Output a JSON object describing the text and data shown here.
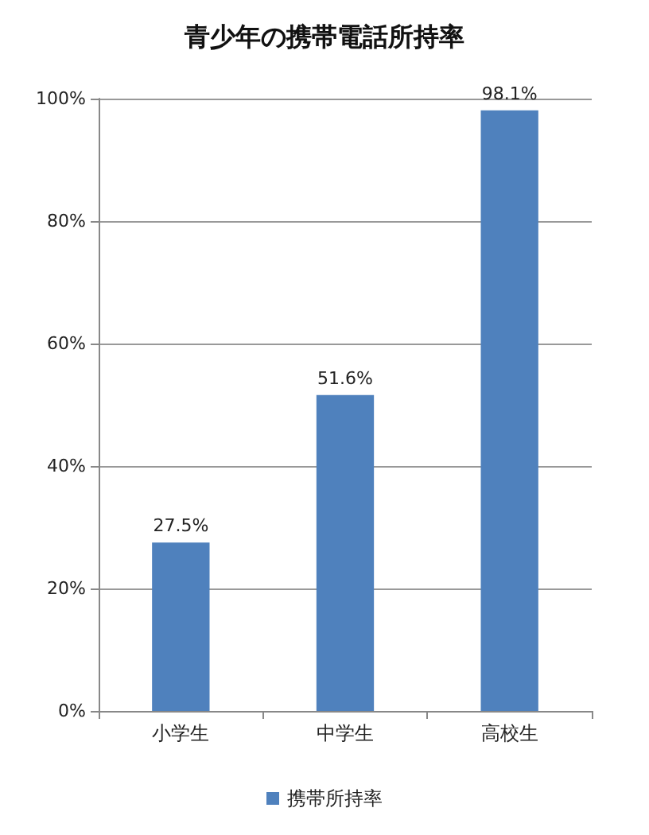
{
  "chart_data": {
    "type": "bar",
    "title": "青少年の携帯電話所持率",
    "categories": [
      "小学生",
      "中学生",
      "高校生"
    ],
    "series": [
      {
        "name": "携帯所持率",
        "color": "#4f81bd",
        "values": [
          27.5,
          51.6,
          98.1
        ],
        "value_labels": [
          "27.5%",
          "51.6%",
          "98.1%"
        ]
      }
    ],
    "ylim": [
      0,
      100
    ],
    "yticks": [
      {
        "value": 0,
        "label": "0%"
      },
      {
        "value": 20,
        "label": "20%"
      },
      {
        "value": 40,
        "label": "40%"
      },
      {
        "value": 60,
        "label": "60%"
      },
      {
        "value": 80,
        "label": "80%"
      },
      {
        "value": 100,
        "label": "100%"
      }
    ],
    "grid": "y",
    "legend": "bottom"
  }
}
